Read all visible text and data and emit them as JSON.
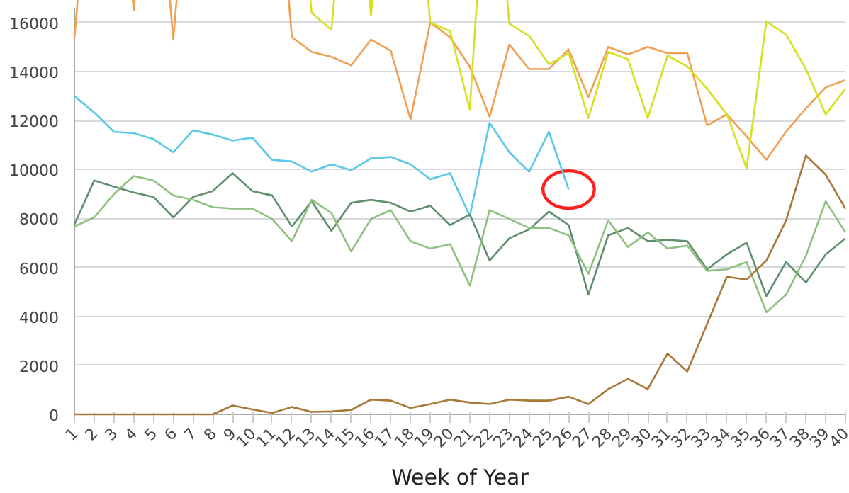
{
  "chart_data": {
    "type": "line",
    "xlabel": "Week of Year",
    "categories": [
      "1",
      "2",
      "3",
      "4",
      "5",
      "6",
      "7",
      "8",
      "9",
      "10",
      "11",
      "12",
      "13",
      "14",
      "15",
      "16",
      "17",
      "18",
      "19",
      "20",
      "21",
      "22",
      "23",
      "24",
      "25",
      "26",
      "27",
      "28",
      "29",
      "30",
      "31",
      "32",
      "33",
      "34",
      "35",
      "36",
      "37",
      "38",
      "39",
      "40"
    ],
    "ylim": [
      0,
      16600
    ],
    "yticks": [
      0,
      2000,
      4000,
      6000,
      8000,
      10000,
      12000,
      14000,
      16000
    ],
    "grid": "y",
    "marker": "none",
    "line_style": "solid",
    "series": [
      {
        "color": "#f0a050",
        "values": [
          15370,
          null,
          null,
          16500,
          null,
          15300,
          null,
          null,
          null,
          null,
          null,
          15400,
          14800,
          14600,
          14250,
          15300,
          14850,
          12050,
          16000,
          15400,
          14200,
          12150,
          15100,
          14100,
          14100,
          14900,
          12950,
          15000,
          14700,
          15000,
          14750,
          14750,
          11800,
          12250,
          11350,
          10400,
          11550,
          12500,
          13350,
          13650
        ]
      },
      {
        "color": "#d4e020",
        "values": [
          null,
          null,
          null,
          null,
          null,
          null,
          null,
          null,
          null,
          null,
          null,
          null,
          16400,
          15700,
          null,
          16300,
          null,
          null,
          16000,
          15650,
          12450,
          null,
          15950,
          15450,
          14300,
          14750,
          12100,
          14800,
          14500,
          12100,
          14650,
          14200,
          13300,
          12250,
          10050,
          16050,
          15500,
          14100,
          12250,
          13300
        ]
      },
      {
        "color": "#5bc8e8",
        "values": [
          12990,
          12330,
          11540,
          11480,
          11240,
          10700,
          11600,
          11420,
          11180,
          11300,
          10390,
          10330,
          9910,
          10210,
          9970,
          10450,
          10510,
          10210,
          9600,
          9850,
          8100,
          11900,
          10700,
          9900,
          11540,
          9180,
          null,
          null,
          null,
          null,
          null,
          null,
          null,
          null,
          null,
          null,
          null,
          null,
          null,
          null
        ]
      },
      {
        "color": "#5f8f6f",
        "values": [
          7750,
          9550,
          9300,
          9060,
          8880,
          8040,
          8880,
          9120,
          9850,
          9120,
          8940,
          7670,
          8700,
          7490,
          8640,
          8760,
          8640,
          8280,
          8520,
          7730,
          8160,
          6280,
          7190,
          7550,
          8280,
          7730,
          4890,
          7310,
          7610,
          7070,
          7130,
          7070,
          5920,
          6530,
          7010,
          4830,
          6220,
          5380,
          6530,
          7190
        ]
      },
      {
        "color": "#8fc07f",
        "values": [
          7670,
          8040,
          9000,
          9730,
          9550,
          8940,
          8760,
          8460,
          8400,
          8400,
          7980,
          7070,
          8760,
          8220,
          6650,
          7980,
          8340,
          7070,
          6770,
          6950,
          5260,
          8340,
          7980,
          7610,
          7610,
          7310,
          5740,
          7920,
          6830,
          7430,
          6770,
          6890,
          5860,
          5920,
          6220,
          4170,
          4890,
          6470,
          8700,
          7430
        ]
      },
      {
        "color": "#a87838",
        "values": [
          0,
          0,
          0,
          0,
          0,
          0,
          0,
          0,
          360,
          200,
          60,
          300,
          100,
          120,
          180,
          600,
          560,
          260,
          420,
          600,
          480,
          420,
          600,
          560,
          560,
          720,
          420,
          1030,
          1450,
          1030,
          2480,
          1750,
          3690,
          5620,
          5500,
          6280,
          7920,
          10570,
          9790,
          8400
        ]
      }
    ]
  }
}
